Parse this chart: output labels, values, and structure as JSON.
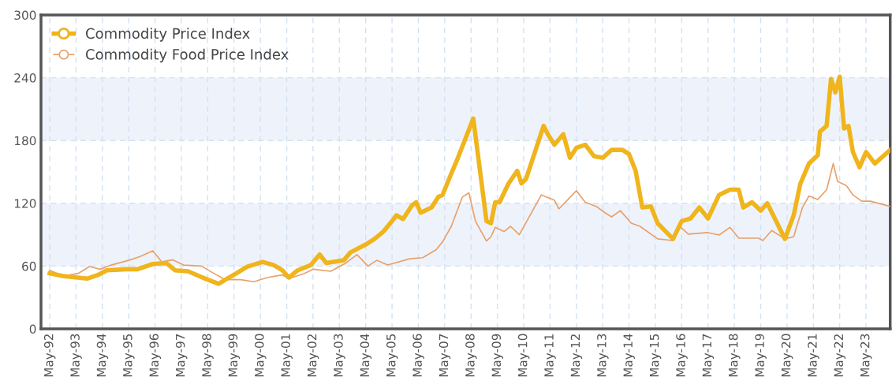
{
  "chart_data": {
    "type": "line",
    "xlim": [
      "1992-01",
      "2024-04"
    ],
    "ylim": [
      0,
      300
    ],
    "yticks": [
      0,
      60,
      120,
      180,
      240,
      300
    ],
    "xticks": [
      {
        "value": "1992-05",
        "label": "May-92"
      },
      {
        "value": "1993-05",
        "label": "May-93"
      },
      {
        "value": "1994-05",
        "label": "May-94"
      },
      {
        "value": "1995-05",
        "label": "May-95"
      },
      {
        "value": "1996-05",
        "label": "May-96"
      },
      {
        "value": "1997-05",
        "label": "May-97"
      },
      {
        "value": "1998-05",
        "label": "May-98"
      },
      {
        "value": "1999-05",
        "label": "May-99"
      },
      {
        "value": "2000-05",
        "label": "May-00"
      },
      {
        "value": "2001-05",
        "label": "May-01"
      },
      {
        "value": "2002-05",
        "label": "May-02"
      },
      {
        "value": "2003-05",
        "label": "May-03"
      },
      {
        "value": "2004-05",
        "label": "May-04"
      },
      {
        "value": "2005-05",
        "label": "May-05"
      },
      {
        "value": "2006-05",
        "label": "May-06"
      },
      {
        "value": "2007-05",
        "label": "May-07"
      },
      {
        "value": "2008-05",
        "label": "May-08"
      },
      {
        "value": "2009-05",
        "label": "May-09"
      },
      {
        "value": "2010-05",
        "label": "May-10"
      },
      {
        "value": "2011-05",
        "label": "May-11"
      },
      {
        "value": "2012-05",
        "label": "May-12"
      },
      {
        "value": "2013-05",
        "label": "May-13"
      },
      {
        "value": "2014-05",
        "label": "May-14"
      },
      {
        "value": "2015-05",
        "label": "May-15"
      },
      {
        "value": "2016-05",
        "label": "May-16"
      },
      {
        "value": "2017-05",
        "label": "May-17"
      },
      {
        "value": "2018-05",
        "label": "May-18"
      },
      {
        "value": "2019-05",
        "label": "May-19"
      },
      {
        "value": "2020-05",
        "label": "May-20"
      },
      {
        "value": "2021-05",
        "label": "May-21"
      },
      {
        "value": "2022-05",
        "label": "May-22"
      },
      {
        "value": "2023-05",
        "label": "May-23"
      }
    ],
    "grid": true,
    "legend": "top left",
    "line_style": "solid",
    "marker": "none",
    "bands": [
      {
        "axis": "y",
        "from": 60,
        "to": 120,
        "color": "#eef3fb"
      },
      {
        "axis": "y",
        "from": 180,
        "to": 240,
        "color": "#eef3fb"
      }
    ],
    "series": [
      {
        "name": "Commodity Price Index",
        "color": "#f0b41c",
        "x": [
          "1992-05",
          "1992-11",
          "1993-10",
          "1994-03",
          "1994-07",
          "1995-04",
          "1995-09",
          "1996-04",
          "1996-10",
          "1997-02",
          "1997-08",
          "1998-01",
          "1998-05",
          "1998-10",
          "1999-01",
          "1999-06",
          "1999-11",
          "2000-06",
          "2000-11",
          "2001-03",
          "2001-06",
          "2001-10",
          "2002-04",
          "2002-08",
          "2002-11",
          "2003-07",
          "2003-10",
          "2004-05",
          "2004-09",
          "2005-01",
          "2005-05",
          "2005-07",
          "2005-10",
          "2006-02",
          "2006-04",
          "2006-06",
          "2006-11",
          "2007-02",
          "2007-04",
          "2007-08",
          "2007-11",
          "2008-06",
          "2008-12",
          "2009-02",
          "2009-04",
          "2009-06",
          "2009-10",
          "2010-02",
          "2010-04",
          "2010-06",
          "2011-02",
          "2011-04",
          "2011-07",
          "2011-11",
          "2012-02",
          "2012-05",
          "2012-09",
          "2013-01",
          "2013-05",
          "2013-09",
          "2014-02",
          "2014-05",
          "2014-08",
          "2014-11",
          "2015-03",
          "2015-06",
          "2016-01",
          "2016-05",
          "2016-09",
          "2017-01",
          "2017-05",
          "2017-10",
          "2018-03",
          "2018-07",
          "2018-09",
          "2019-01",
          "2019-05",
          "2019-08",
          "2020-04",
          "2020-08",
          "2020-11",
          "2021-03",
          "2021-07",
          "2021-08",
          "2021-11",
          "2022-01",
          "2022-03",
          "2022-05",
          "2022-07",
          "2022-09",
          "2022-11",
          "2023-02",
          "2023-05",
          "2023-09",
          "2024-04"
        ],
        "values": [
          53,
          50.5,
          48,
          51.5,
          56,
          57,
          57,
          62,
          63,
          56,
          55,
          50.5,
          47,
          43,
          47,
          53,
          59.5,
          64,
          61,
          56,
          49,
          56,
          61,
          71,
          63,
          65.5,
          73,
          80.6,
          86,
          93,
          103,
          108.5,
          105,
          118,
          121,
          111,
          116,
          126,
          128,
          148.5,
          163.5,
          201,
          103,
          101,
          121,
          121,
          138.7,
          151,
          139,
          143,
          194,
          186,
          176,
          186,
          163.5,
          173,
          176,
          165,
          163.5,
          171,
          171,
          167,
          151,
          116,
          117,
          101,
          86,
          103,
          105.5,
          116,
          105.5,
          128,
          133,
          133,
          116,
          121,
          113,
          120,
          86,
          108.5,
          138.7,
          158,
          166,
          188.5,
          194,
          239,
          226,
          241,
          191.5,
          194,
          169,
          154.5,
          169,
          158,
          171
        ]
      },
      {
        "name": "Commodity Food Price Index",
        "color": "#e8a06a",
        "x": [
          "1992-05",
          "1992-11",
          "1993-06",
          "1993-11",
          "1994-04",
          "1994-09",
          "1995-05",
          "1995-10",
          "1996-04",
          "1996-08",
          "1997-01",
          "1997-06",
          "1998-02",
          "1998-07",
          "1999-01",
          "1999-08",
          "2000-02",
          "2000-08",
          "2001-03",
          "2001-06",
          "2002-01",
          "2002-05",
          "2003-01",
          "2003-08",
          "2004-01",
          "2004-06",
          "2004-10",
          "2005-03",
          "2006-01",
          "2006-07",
          "2007-01",
          "2007-04",
          "2007-08",
          "2008-01",
          "2008-04",
          "2008-07",
          "2008-12",
          "2009-02",
          "2009-04",
          "2009-08",
          "2009-11",
          "2010-03",
          "2011-01",
          "2011-07",
          "2011-09",
          "2012-05",
          "2012-09",
          "2013-02",
          "2013-06",
          "2013-09",
          "2014-01",
          "2014-06",
          "2014-10",
          "2015-06",
          "2016-01",
          "2016-04",
          "2016-08",
          "2017-05",
          "2017-10",
          "2018-03",
          "2018-07",
          "2019-04",
          "2019-06",
          "2019-10",
          "2020-04",
          "2020-08",
          "2020-12",
          "2021-03",
          "2021-07",
          "2021-11",
          "2022-02",
          "2022-04",
          "2022-08",
          "2022-11",
          "2023-03",
          "2023-07",
          "2024-04"
        ],
        "values": [
          56,
          50.5,
          53,
          59.5,
          57,
          61,
          65.5,
          69,
          74.6,
          64,
          66,
          61,
          60,
          54,
          47,
          47,
          45,
          49,
          51.5,
          48,
          53,
          57,
          55,
          63,
          71,
          60,
          65.5,
          61,
          67,
          68,
          75.5,
          83,
          98,
          126,
          130,
          103,
          84,
          88,
          97,
          93,
          98,
          90,
          128,
          123,
          114.6,
          132,
          121,
          117,
          111,
          107,
          113,
          101,
          98,
          86,
          84.4,
          98,
          90.5,
          92,
          89.7,
          97,
          86.7,
          86.7,
          84.4,
          94,
          86,
          88,
          116,
          127,
          123.6,
          133,
          158,
          141,
          137,
          128,
          122,
          122,
          117
        ]
      }
    ]
  }
}
